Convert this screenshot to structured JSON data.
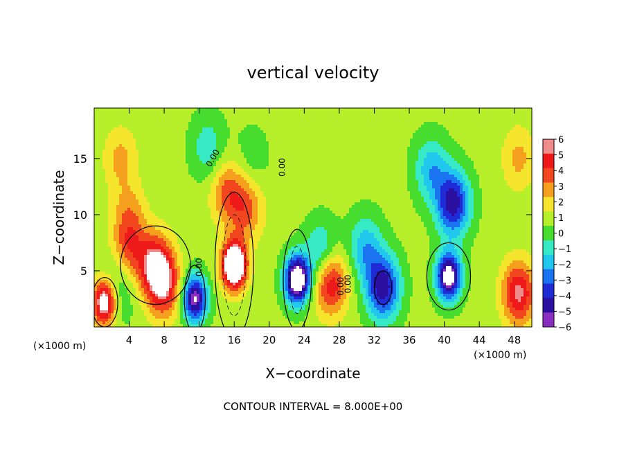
{
  "chart_data": {
    "type": "heatmap",
    "title": "vertical velocity",
    "xlabel": "X−coordinate",
    "ylabel": "Z−coordinate",
    "x_unit_label": "(×1000 m)",
    "z_unit_label": "(×1000 m)",
    "footer": "CONTOUR INTERVAL = 8.000E+00",
    "xlim": [
      0,
      50
    ],
    "ylim": [
      0,
      19.5
    ],
    "x_ticks": [
      4,
      8,
      12,
      16,
      20,
      24,
      28,
      32,
      36,
      40,
      44,
      48
    ],
    "y_ticks": [
      5,
      10,
      15
    ],
    "grid": false,
    "colorbar": {
      "labels": [
        "6",
        "5",
        "4",
        "3",
        "2",
        "1",
        "0",
        "−1",
        "−2",
        "−3",
        "−4",
        "−5",
        "−6"
      ],
      "min": -6,
      "max": 6
    },
    "contour_labels": [
      "0.00",
      "0.00",
      "0.00",
      "0.00",
      "0.00"
    ],
    "features": [
      {
        "x": 16,
        "z": 5.5,
        "value": 9
      },
      {
        "x": 15.2,
        "z": 12,
        "value": 3
      },
      {
        "x": 17.4,
        "z": 10.5,
        "value": 3
      },
      {
        "x": 7,
        "z": 5.5,
        "value": 5
      },
      {
        "x": 8,
        "z": 3.5,
        "value": 4
      },
      {
        "x": 4,
        "z": 7,
        "value": 3
      },
      {
        "x": 1.2,
        "z": 2.2,
        "value": 7
      },
      {
        "x": 23.2,
        "z": 4.2,
        "value": -9
      },
      {
        "x": 11.5,
        "z": 2.5,
        "value": -7
      },
      {
        "x": 27,
        "z": 4,
        "value": 5
      },
      {
        "x": 26,
        "z": 6.5,
        "value": -3
      },
      {
        "x": 33,
        "z": 3.5,
        "value": -6
      },
      {
        "x": 40.5,
        "z": 4.5,
        "value": -8
      },
      {
        "x": 41,
        "z": 11,
        "value": -6
      },
      {
        "x": 38.5,
        "z": 14,
        "value": -3
      },
      {
        "x": 31,
        "z": 7,
        "value": -3
      },
      {
        "x": 48.5,
        "z": 3,
        "value": 5
      },
      {
        "x": 48.5,
        "z": 15,
        "value": 2
      },
      {
        "x": 3,
        "z": 15,
        "value": 2
      },
      {
        "x": 4,
        "z": 10,
        "value": 2
      },
      {
        "x": 13,
        "z": 16,
        "value": -2
      },
      {
        "x": 18,
        "z": 15,
        "value": -1
      },
      {
        "x": 2.5,
        "z": 3.2,
        "value": -2
      }
    ],
    "palette": [
      "#8a2fbf",
      "#2b0fa0",
      "#1e2bd6",
      "#1a74f0",
      "#22c7ee",
      "#38e9c5",
      "#46dd2e",
      "#b7ef2a",
      "#f5e52c",
      "#f5a11f",
      "#f2461e",
      "#ee1a1a",
      "#f08c8c"
    ]
  }
}
